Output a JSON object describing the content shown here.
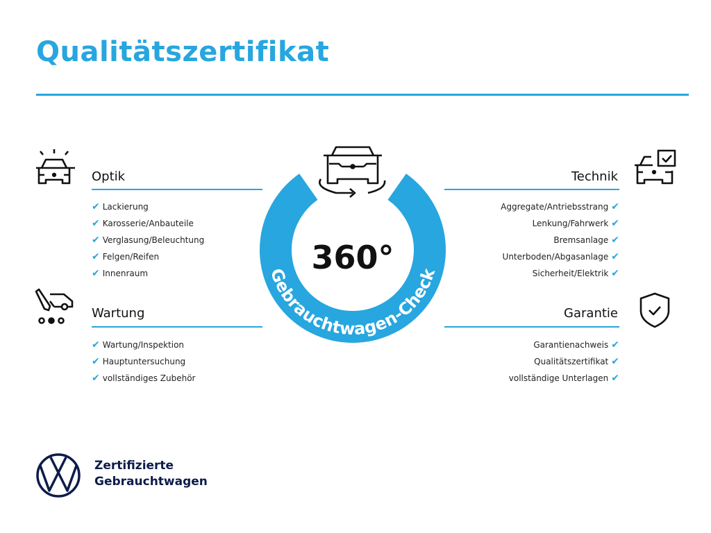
{
  "colors": {
    "accent": "#27a6df",
    "navy": "#0d1c4a",
    "text": "#1a1a1a"
  },
  "title": "Qualitätszertifikat",
  "badge": {
    "number": "360°",
    "ring_text": "Gebrauchtwagen-Check",
    "icon": "car-rotate-icon"
  },
  "sections": {
    "optik": {
      "heading": "Optik",
      "icon": "car-lights-icon",
      "items": [
        "Lackierung",
        "Karosserie/Anbauteile",
        "Verglasung/Beleuchtung",
        "Felgen/Reifen",
        "Innenraum"
      ]
    },
    "wartung": {
      "heading": "Wartung",
      "icon": "service-van-icon",
      "items": [
        "Wartung/Inspektion",
        "Hauptuntersuchung",
        "vollständiges Zubehör"
      ]
    },
    "technik": {
      "heading": "Technik",
      "icon": "car-checkbox-icon",
      "items": [
        "Aggregate/Antriebsstrang",
        "Lenkung/Fahrwerk",
        "Bremsanlage",
        "Unterboden/Abgasanlage",
        "Sicherheit/Elektrik"
      ]
    },
    "garantie": {
      "heading": "Garantie",
      "icon": "shield-check-icon",
      "items": [
        "Garantienachweis",
        "Qualitätszertifikat",
        "vollständige Unterlagen"
      ]
    }
  },
  "check_glyph": "✔",
  "footer": {
    "line1": "Zertifizierte",
    "line2": "Gebrauchtwagen",
    "logo": "vw-logo"
  }
}
